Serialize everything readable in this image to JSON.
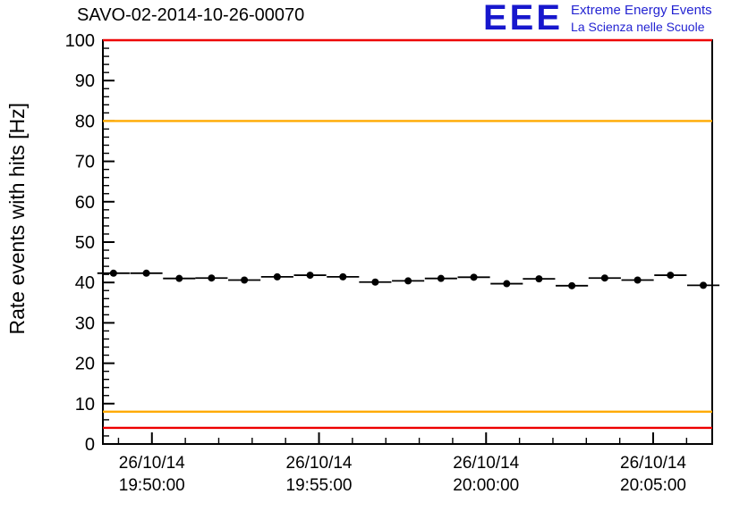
{
  "header": {
    "title": "SAVO-02-2014-10-26-00070",
    "logo": {
      "acronym": "EEE",
      "line1": "Extreme Energy Events",
      "line2": "La Scienza nelle Scuole",
      "brand_color": "#1717cd"
    }
  },
  "chart_data": {
    "type": "scatter",
    "title": "SAVO-02-2014-10-26-00070",
    "xlabel": "",
    "ylabel": "Rate events with hits [Hz]",
    "ylim": [
      0,
      100
    ],
    "y_ticks": [
      0,
      10,
      20,
      30,
      40,
      50,
      60,
      70,
      80,
      90,
      100
    ],
    "y_minor_tick_step": 2,
    "grid": false,
    "legend": "none",
    "x_range_seconds": [
      71312,
      72406
    ],
    "x_minor_tick_seconds": 60,
    "x_ticks": [
      {
        "seconds": 71400,
        "label_date": "26/10/14",
        "label_time": "19:50:00"
      },
      {
        "seconds": 71700,
        "label_date": "26/10/14",
        "label_time": "19:55:00"
      },
      {
        "seconds": 72000,
        "label_date": "26/10/14",
        "label_time": "20:00:00"
      },
      {
        "seconds": 72300,
        "label_date": "26/10/14",
        "label_time": "20:05:00"
      }
    ],
    "reference_lines": [
      {
        "value": 100,
        "color": "#ee0000"
      },
      {
        "value": 80,
        "color": "#ffaa00"
      },
      {
        "value": 8,
        "color": "#ffaa00"
      },
      {
        "value": 4,
        "color": "#ee0000"
      }
    ],
    "series": [
      {
        "name": "rate-events-with-hits",
        "marker": "circle",
        "color": "#000000",
        "points": [
          {
            "t": 71331,
            "y": 42.3,
            "xerr": 29
          },
          {
            "t": 71390,
            "y": 42.3,
            "xerr": 29
          },
          {
            "t": 71449,
            "y": 41.0,
            "xerr": 29
          },
          {
            "t": 71507,
            "y": 41.1,
            "xerr": 29
          },
          {
            "t": 71566,
            "y": 40.6,
            "xerr": 29
          },
          {
            "t": 71625,
            "y": 41.4,
            "xerr": 29
          },
          {
            "t": 71684,
            "y": 41.8,
            "xerr": 29
          },
          {
            "t": 71743,
            "y": 41.4,
            "xerr": 29
          },
          {
            "t": 71801,
            "y": 40.1,
            "xerr": 29
          },
          {
            "t": 71860,
            "y": 40.4,
            "xerr": 29
          },
          {
            "t": 71919,
            "y": 41.0,
            "xerr": 29
          },
          {
            "t": 71978,
            "y": 41.3,
            "xerr": 29
          },
          {
            "t": 72037,
            "y": 39.7,
            "xerr": 29
          },
          {
            "t": 72095,
            "y": 40.9,
            "xerr": 29
          },
          {
            "t": 72154,
            "y": 39.2,
            "xerr": 29
          },
          {
            "t": 72213,
            "y": 41.1,
            "xerr": 29
          },
          {
            "t": 72272,
            "y": 40.6,
            "xerr": 29
          },
          {
            "t": 72331,
            "y": 41.8,
            "xerr": 29
          },
          {
            "t": 72390,
            "y": 39.3,
            "xerr": 29
          }
        ]
      }
    ]
  }
}
